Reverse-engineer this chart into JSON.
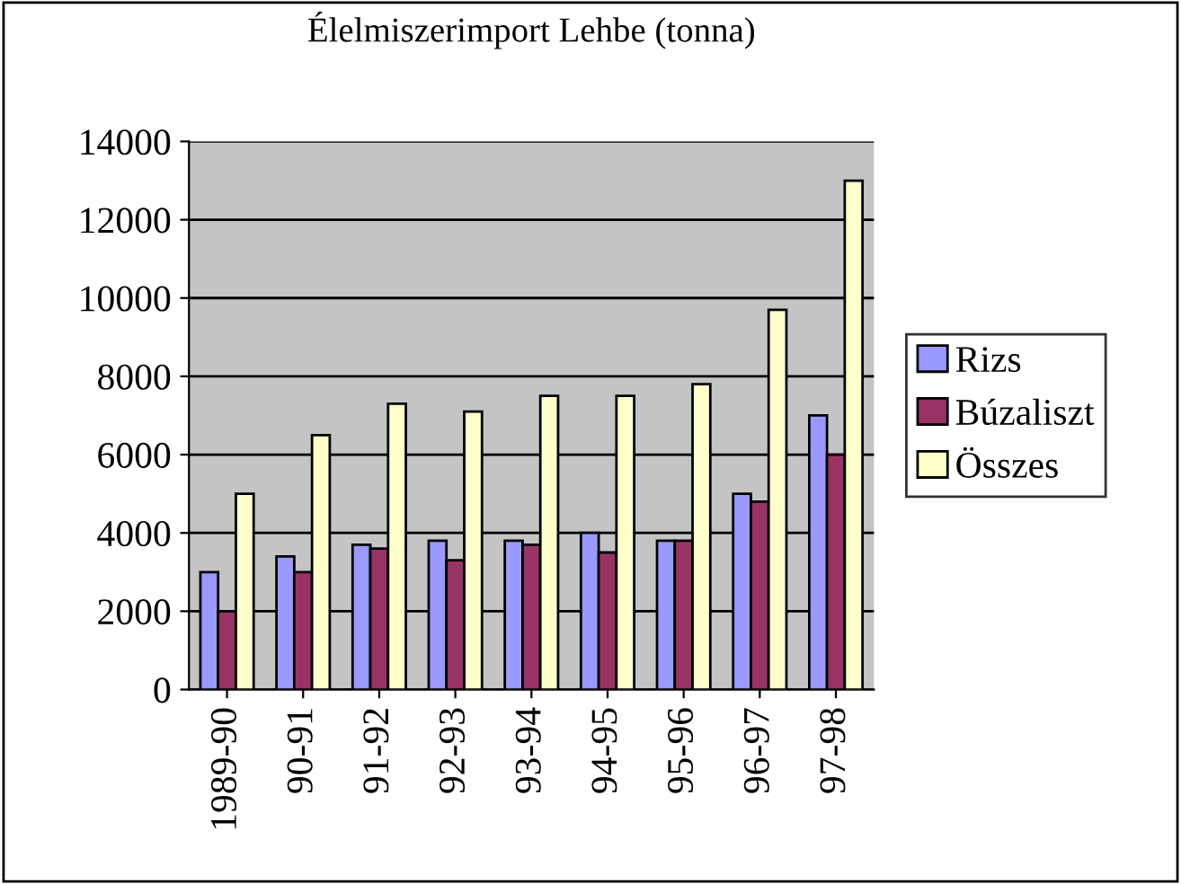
{
  "chart_data": {
    "type": "bar",
    "title": "Élelmiszerimport Lehbe (tonna)",
    "categories": [
      "1989-90",
      "90-91",
      "91-92",
      "92-93",
      "93-94",
      "94-95",
      "95-96",
      "96-97",
      "97-98"
    ],
    "series": [
      {
        "name": "Rizs",
        "color": "#9999ff",
        "values": [
          3000,
          3400,
          3700,
          3800,
          3800,
          4000,
          3800,
          5000,
          7000
        ]
      },
      {
        "name": "Búzaliszt",
        "color": "#993366",
        "values": [
          2000,
          3000,
          3600,
          3300,
          3700,
          3500,
          3800,
          4800,
          6000
        ]
      },
      {
        "name": "Összes",
        "color": "#ffffcc",
        "values": [
          5000,
          6500,
          7300,
          7100,
          7500,
          7500,
          7800,
          9700,
          13000
        ]
      }
    ],
    "ylim": [
      0,
      14000
    ],
    "yticks": [
      0,
      2000,
      4000,
      6000,
      8000,
      10000,
      12000,
      14000
    ],
    "grid": "y",
    "legend": "right"
  }
}
